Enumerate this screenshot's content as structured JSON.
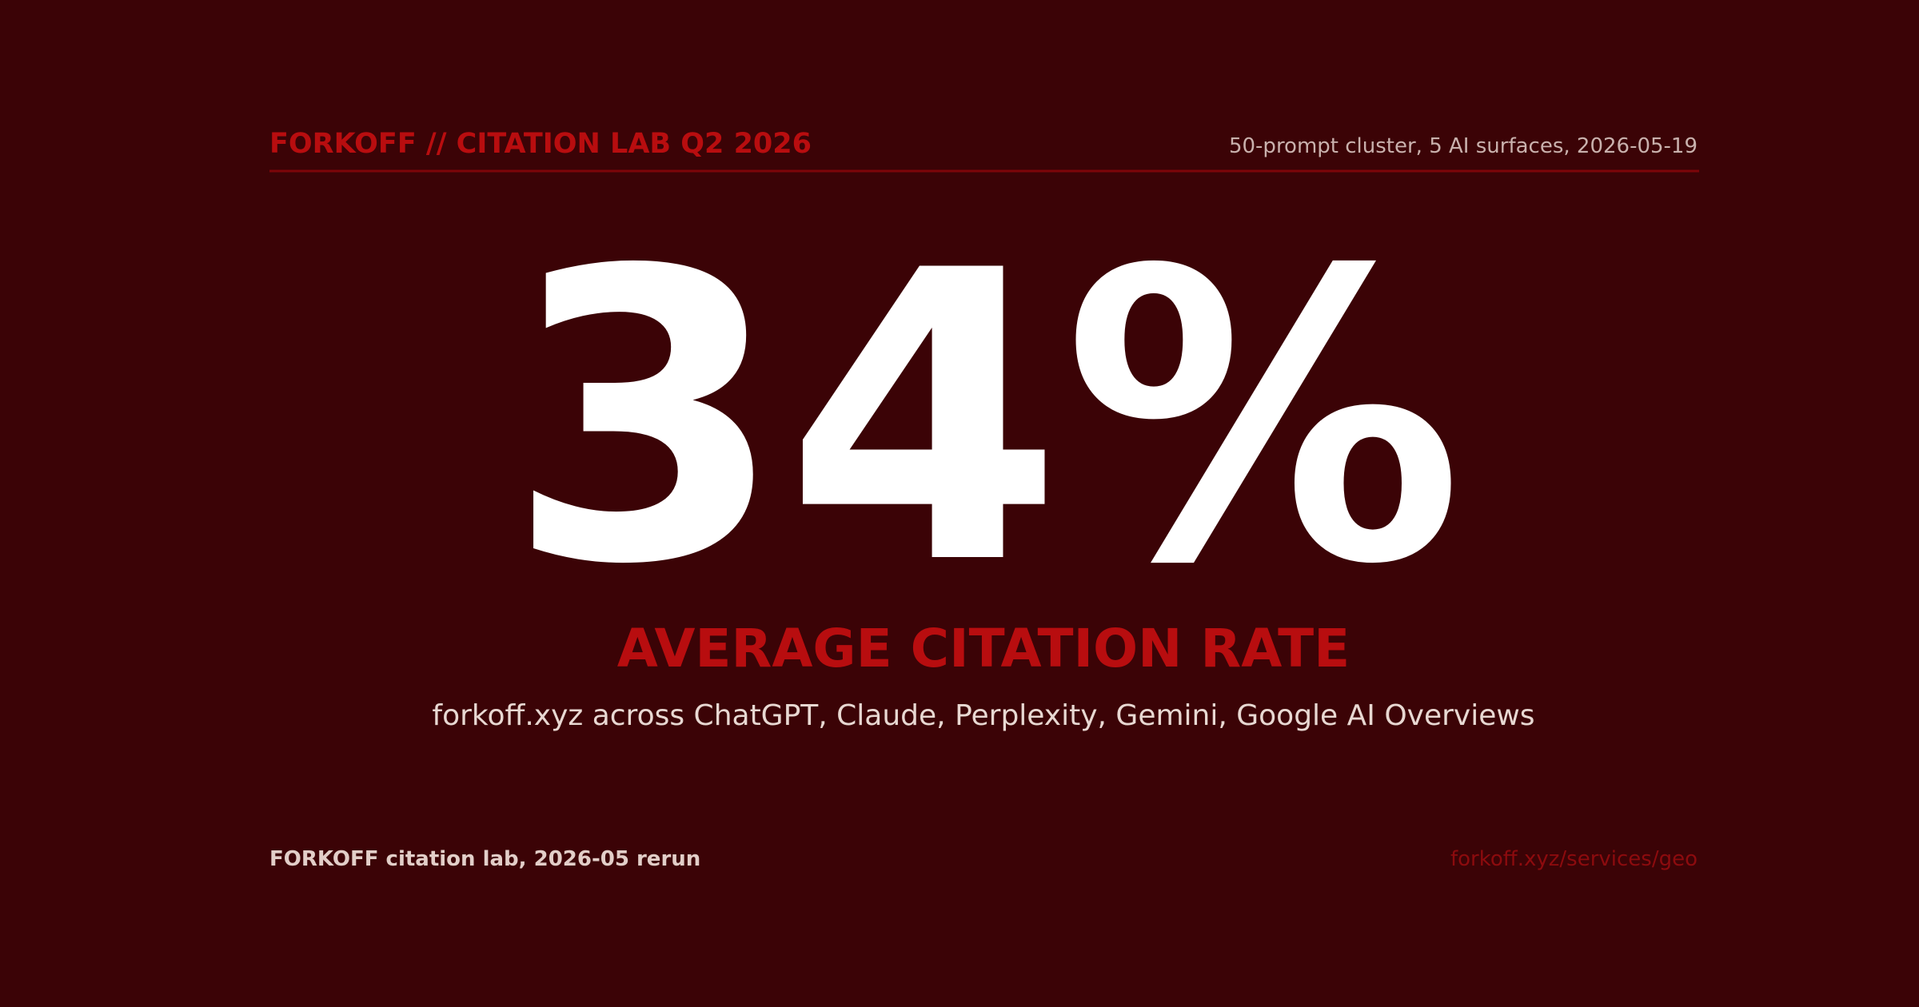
{
  "header": {
    "brand": "FORKOFF // CITATION LAB Q2 2026",
    "meta": "50-prompt cluster, 5 AI surfaces, 2026-05-19"
  },
  "stat": {
    "value": "34%",
    "label": "AVERAGE CITATION RATE",
    "description": "forkoff.xyz across ChatGPT, Claude, Perplexity, Gemini, Google AI Overviews"
  },
  "footer": {
    "left": "FORKOFF citation lab, 2026-05 rerun",
    "right": "forkoff.xyz/services/geo"
  }
}
